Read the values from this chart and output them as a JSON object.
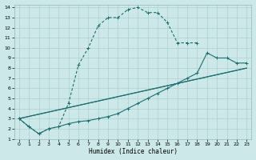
{
  "xlabel": "Humidex (Indice chaleur)",
  "ylabel": "",
  "bg_color": "#cce8e8",
  "grid_color": "#aed0d0",
  "line_color": "#1a7070",
  "xlim": [
    -0.5,
    23.5
  ],
  "ylim": [
    1,
    14.3
  ],
  "xticks": [
    0,
    1,
    2,
    3,
    4,
    5,
    6,
    7,
    8,
    9,
    10,
    11,
    12,
    13,
    14,
    15,
    16,
    17,
    18,
    19,
    20,
    21,
    22,
    23
  ],
  "yticks": [
    1,
    2,
    3,
    4,
    5,
    6,
    7,
    8,
    9,
    10,
    11,
    12,
    13,
    14
  ],
  "series1_x": [
    0,
    1,
    2,
    3,
    4,
    5,
    6,
    7,
    8,
    9,
    10,
    11,
    12,
    13,
    14,
    15,
    16,
    17,
    18
  ],
  "series1_y": [
    3.0,
    2.2,
    1.5,
    2.0,
    2.2,
    4.5,
    8.3,
    10.0,
    12.2,
    13.0,
    13.0,
    13.8,
    14.0,
    13.5,
    13.5,
    12.5,
    10.5,
    10.5,
    10.5
  ],
  "series2_x": [
    0,
    1,
    2,
    3,
    4,
    5,
    6,
    7,
    8,
    9,
    10,
    11,
    12,
    13,
    14,
    15,
    16,
    17,
    18,
    19,
    20,
    21,
    22,
    23
  ],
  "series2_y": [
    3.0,
    2.2,
    1.5,
    2.0,
    2.2,
    2.5,
    2.7,
    2.8,
    3.0,
    3.2,
    3.5,
    4.0,
    4.5,
    5.0,
    5.5,
    6.0,
    6.5,
    7.0,
    7.5,
    9.5,
    9.0,
    9.0,
    8.5,
    8.5
  ],
  "series3_x": [
    0,
    23
  ],
  "series3_y": [
    3.0,
    8.0
  ],
  "series4_x": [
    0,
    23
  ],
  "series4_y": [
    3.0,
    8.0
  ]
}
